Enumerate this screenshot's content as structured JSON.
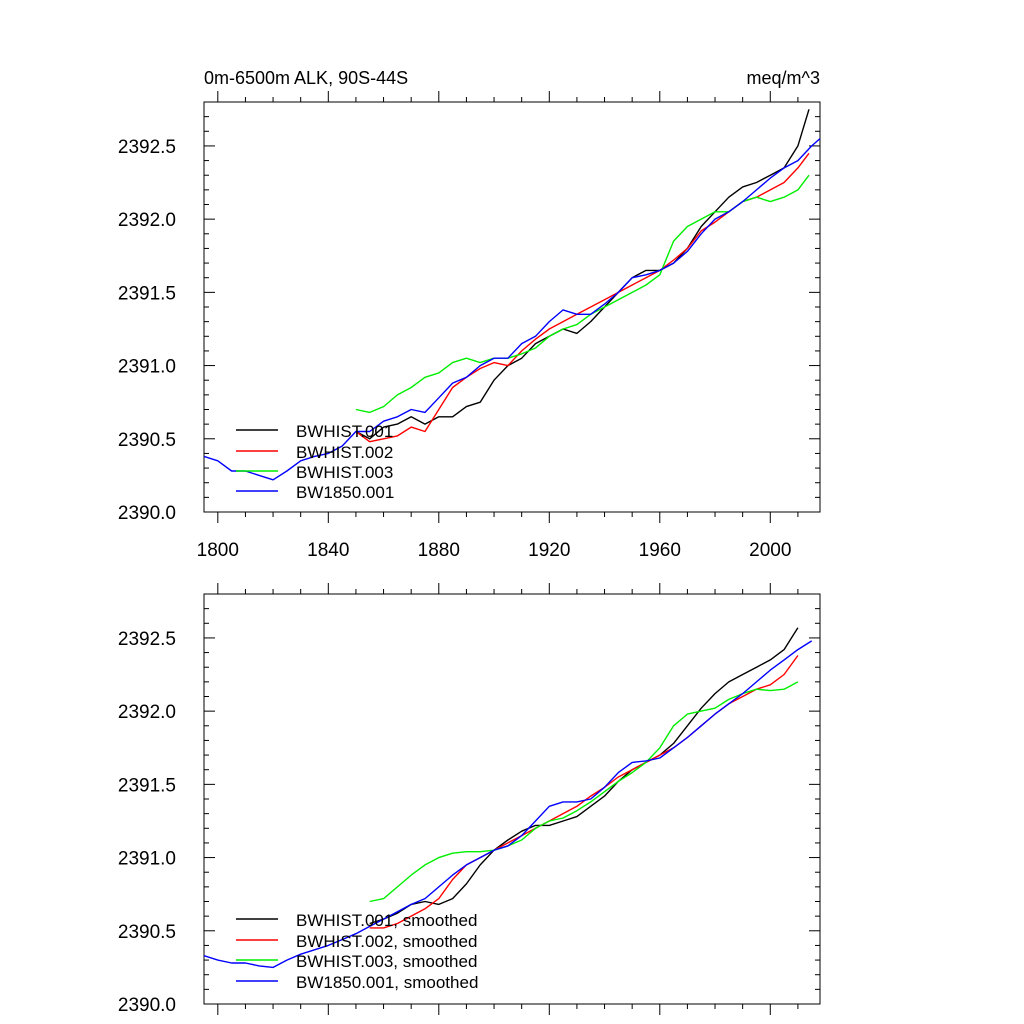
{
  "chart_data": [
    {
      "type": "line",
      "title_left": "0m-6500m ALK, 90S-44S",
      "title_right": "meq/m^3",
      "xlim": [
        1795,
        2018
      ],
      "ylim": [
        2390.0,
        2392.8
      ],
      "xticks": [
        1800,
        1840,
        1880,
        1920,
        1960,
        2000
      ],
      "yticks": [
        2390.0,
        2390.5,
        2391.0,
        2391.5,
        2392.0,
        2392.5
      ],
      "ytick_labels": [
        "2390.0",
        "2390.5",
        "2391.0",
        "2391.5",
        "2392.0",
        "2392.5"
      ],
      "xtick_labels": [
        "1800",
        "1840",
        "1880",
        "1920",
        "1960",
        "2000"
      ],
      "legend": [
        "BWHIST.001",
        "BWHIST.002",
        "BWHIST.003",
        "BW1850.001"
      ],
      "series": [
        {
          "name": "BWHIST.001",
          "color": "#000000",
          "x": [
            1850,
            1855,
            1860,
            1865,
            1870,
            1875,
            1880,
            1885,
            1890,
            1895,
            1900,
            1905,
            1910,
            1915,
            1920,
            1925,
            1930,
            1935,
            1940,
            1945,
            1950,
            1955,
            1960,
            1965,
            1970,
            1975,
            1980,
            1985,
            1990,
            1995,
            2000,
            2005,
            2010,
            2014
          ],
          "y": [
            2390.55,
            2390.5,
            2390.58,
            2390.6,
            2390.65,
            2390.6,
            2390.65,
            2390.65,
            2390.72,
            2390.75,
            2390.9,
            2391.0,
            2391.05,
            2391.15,
            2391.2,
            2391.25,
            2391.22,
            2391.3,
            2391.4,
            2391.5,
            2391.6,
            2391.65,
            2391.65,
            2391.7,
            2391.8,
            2391.95,
            2392.05,
            2392.15,
            2392.22,
            2392.25,
            2392.3,
            2392.35,
            2392.5,
            2392.75
          ]
        },
        {
          "name": "BWHIST.002",
          "color": "#ff0000",
          "x": [
            1850,
            1855,
            1860,
            1865,
            1870,
            1875,
            1880,
            1885,
            1890,
            1895,
            1900,
            1905,
            1910,
            1915,
            1920,
            1925,
            1930,
            1935,
            1940,
            1945,
            1950,
            1955,
            1960,
            1965,
            1970,
            1975,
            1980,
            1985,
            1990,
            1995,
            2000,
            2005,
            2010,
            2014
          ],
          "y": [
            2390.55,
            2390.48,
            2390.5,
            2390.52,
            2390.58,
            2390.55,
            2390.7,
            2390.85,
            2390.92,
            2390.98,
            2391.02,
            2391.0,
            2391.1,
            2391.18,
            2391.25,
            2391.3,
            2391.35,
            2391.4,
            2391.45,
            2391.5,
            2391.55,
            2391.6,
            2391.65,
            2391.72,
            2391.8,
            2391.92,
            2391.98,
            2392.05,
            2392.12,
            2392.15,
            2392.2,
            2392.25,
            2392.35,
            2392.45
          ]
        },
        {
          "name": "BWHIST.003",
          "color": "#00ee00",
          "x": [
            1850,
            1855,
            1860,
            1865,
            1870,
            1875,
            1880,
            1885,
            1890,
            1895,
            1900,
            1905,
            1910,
            1915,
            1920,
            1925,
            1930,
            1935,
            1940,
            1945,
            1950,
            1955,
            1960,
            1965,
            1970,
            1975,
            1980,
            1985,
            1990,
            1995,
            2000,
            2005,
            2010,
            2014
          ],
          "y": [
            2390.7,
            2390.68,
            2390.72,
            2390.8,
            2390.85,
            2390.92,
            2390.95,
            2391.02,
            2391.05,
            2391.02,
            2391.05,
            2391.05,
            2391.08,
            2391.12,
            2391.2,
            2391.25,
            2391.28,
            2391.35,
            2391.4,
            2391.45,
            2391.5,
            2391.55,
            2391.62,
            2391.85,
            2391.95,
            2392.0,
            2392.05,
            2392.05,
            2392.12,
            2392.15,
            2392.12,
            2392.15,
            2392.2,
            2392.3
          ]
        },
        {
          "name": "BW1850.001",
          "color": "#0000ff",
          "x": [
            1795,
            1800,
            1805,
            1810,
            1815,
            1820,
            1825,
            1830,
            1835,
            1840,
            1845,
            1850,
            1855,
            1860,
            1865,
            1870,
            1875,
            1880,
            1885,
            1890,
            1895,
            1900,
            1905,
            1910,
            1915,
            1920,
            1925,
            1930,
            1935,
            1940,
            1945,
            1950,
            1955,
            1960,
            1965,
            1970,
            1975,
            1980,
            1985,
            1990,
            1995,
            2000,
            2005,
            2010,
            2015,
            2018
          ],
          "y": [
            2390.38,
            2390.35,
            2390.28,
            2390.28,
            2390.25,
            2390.22,
            2390.28,
            2390.35,
            2390.38,
            2390.4,
            2390.45,
            2390.55,
            2390.55,
            2390.62,
            2390.65,
            2390.7,
            2390.68,
            2390.78,
            2390.88,
            2390.92,
            2391.0,
            2391.05,
            2391.05,
            2391.15,
            2391.2,
            2391.3,
            2391.38,
            2391.35,
            2391.35,
            2391.42,
            2391.5,
            2391.6,
            2391.62,
            2391.65,
            2391.7,
            2391.78,
            2391.9,
            2392.0,
            2392.05,
            2392.12,
            2392.2,
            2392.28,
            2392.35,
            2392.4,
            2392.5,
            2392.55
          ]
        }
      ]
    },
    {
      "type": "line",
      "title_left": "",
      "title_right": "",
      "xlim": [
        1795,
        2018
      ],
      "ylim": [
        2390.0,
        2392.8
      ],
      "xticks": [
        1800,
        1840,
        1880,
        1920,
        1960,
        2000
      ],
      "yticks": [
        2390.0,
        2390.5,
        2391.0,
        2391.5,
        2392.0,
        2392.5
      ],
      "ytick_labels": [
        "2390.0",
        "2390.5",
        "2391.0",
        "2391.5",
        "2392.0",
        "2392.5"
      ],
      "legend": [
        "BWHIST.001, smoothed",
        "BWHIST.002, smoothed",
        "BWHIST.003, smoothed",
        "BW1850.001, smoothed"
      ],
      "series": [
        {
          "name": "BWHIST.001, smoothed",
          "color": "#000000",
          "x": [
            1855,
            1860,
            1865,
            1870,
            1875,
            1880,
            1885,
            1890,
            1895,
            1900,
            1905,
            1910,
            1915,
            1920,
            1925,
            1930,
            1935,
            1940,
            1945,
            1950,
            1955,
            1960,
            1965,
            1970,
            1975,
            1980,
            1985,
            1990,
            1995,
            2000,
            2005,
            2010
          ],
          "y": [
            2390.55,
            2390.58,
            2390.62,
            2390.68,
            2390.7,
            2390.68,
            2390.72,
            2390.82,
            2390.95,
            2391.05,
            2391.12,
            2391.18,
            2391.22,
            2391.22,
            2391.25,
            2391.28,
            2391.35,
            2391.42,
            2391.52,
            2391.6,
            2391.65,
            2391.7,
            2391.78,
            2391.9,
            2392.02,
            2392.12,
            2392.2,
            2392.25,
            2392.3,
            2392.35,
            2392.42,
            2392.57
          ]
        },
        {
          "name": "BWHIST.002, smoothed",
          "color": "#ff0000",
          "x": [
            1855,
            1860,
            1865,
            1870,
            1875,
            1880,
            1885,
            1890,
            1895,
            1900,
            1905,
            1910,
            1915,
            1920,
            1925,
            1930,
            1935,
            1940,
            1945,
            1950,
            1955,
            1960,
            1965,
            1970,
            1975,
            1980,
            1985,
            1990,
            1995,
            2000,
            2005,
            2010
          ],
          "y": [
            2390.52,
            2390.52,
            2390.55,
            2390.6,
            2390.65,
            2390.72,
            2390.85,
            2390.95,
            2391.0,
            2391.05,
            2391.1,
            2391.15,
            2391.2,
            2391.25,
            2391.3,
            2391.35,
            2391.42,
            2391.48,
            2391.55,
            2391.6,
            2391.65,
            2391.7,
            2391.75,
            2391.82,
            2391.9,
            2391.98,
            2392.05,
            2392.1,
            2392.15,
            2392.18,
            2392.25,
            2392.38
          ]
        },
        {
          "name": "BWHIST.003, smoothed",
          "color": "#00ee00",
          "x": [
            1855,
            1860,
            1865,
            1870,
            1875,
            1880,
            1885,
            1890,
            1895,
            1900,
            1905,
            1910,
            1915,
            1920,
            1925,
            1930,
            1935,
            1940,
            1945,
            1950,
            1955,
            1960,
            1965,
            1970,
            1975,
            1980,
            1985,
            1990,
            1995,
            2000,
            2005,
            2010
          ],
          "y": [
            2390.7,
            2390.72,
            2390.8,
            2390.88,
            2390.95,
            2391.0,
            2391.03,
            2391.04,
            2391.04,
            2391.05,
            2391.08,
            2391.12,
            2391.2,
            2391.25,
            2391.27,
            2391.32,
            2391.38,
            2391.45,
            2391.52,
            2391.58,
            2391.65,
            2391.75,
            2391.9,
            2391.98,
            2392.0,
            2392.02,
            2392.08,
            2392.12,
            2392.15,
            2392.14,
            2392.15,
            2392.2
          ]
        },
        {
          "name": "BW1850.001, smoothed",
          "color": "#0000ff",
          "x": [
            1795,
            1800,
            1805,
            1810,
            1815,
            1820,
            1825,
            1830,
            1835,
            1840,
            1845,
            1850,
            1855,
            1860,
            1865,
            1870,
            1875,
            1880,
            1885,
            1890,
            1895,
            1900,
            1905,
            1910,
            1915,
            1920,
            1925,
            1930,
            1935,
            1940,
            1945,
            1950,
            1955,
            1960,
            1965,
            1970,
            1975,
            1980,
            1985,
            1990,
            1995,
            2000,
            2005,
            2010,
            2015
          ],
          "y": [
            2390.33,
            2390.3,
            2390.28,
            2390.28,
            2390.26,
            2390.25,
            2390.3,
            2390.34,
            2390.37,
            2390.4,
            2390.44,
            2390.48,
            2390.53,
            2390.58,
            2390.63,
            2390.68,
            2390.72,
            2390.8,
            2390.88,
            2390.95,
            2391.0,
            2391.05,
            2391.08,
            2391.15,
            2391.25,
            2391.35,
            2391.38,
            2391.38,
            2391.4,
            2391.48,
            2391.58,
            2391.65,
            2391.66,
            2391.68,
            2391.75,
            2391.82,
            2391.9,
            2391.98,
            2392.05,
            2392.12,
            2392.2,
            2392.28,
            2392.35,
            2392.42,
            2392.48
          ]
        }
      ]
    }
  ]
}
